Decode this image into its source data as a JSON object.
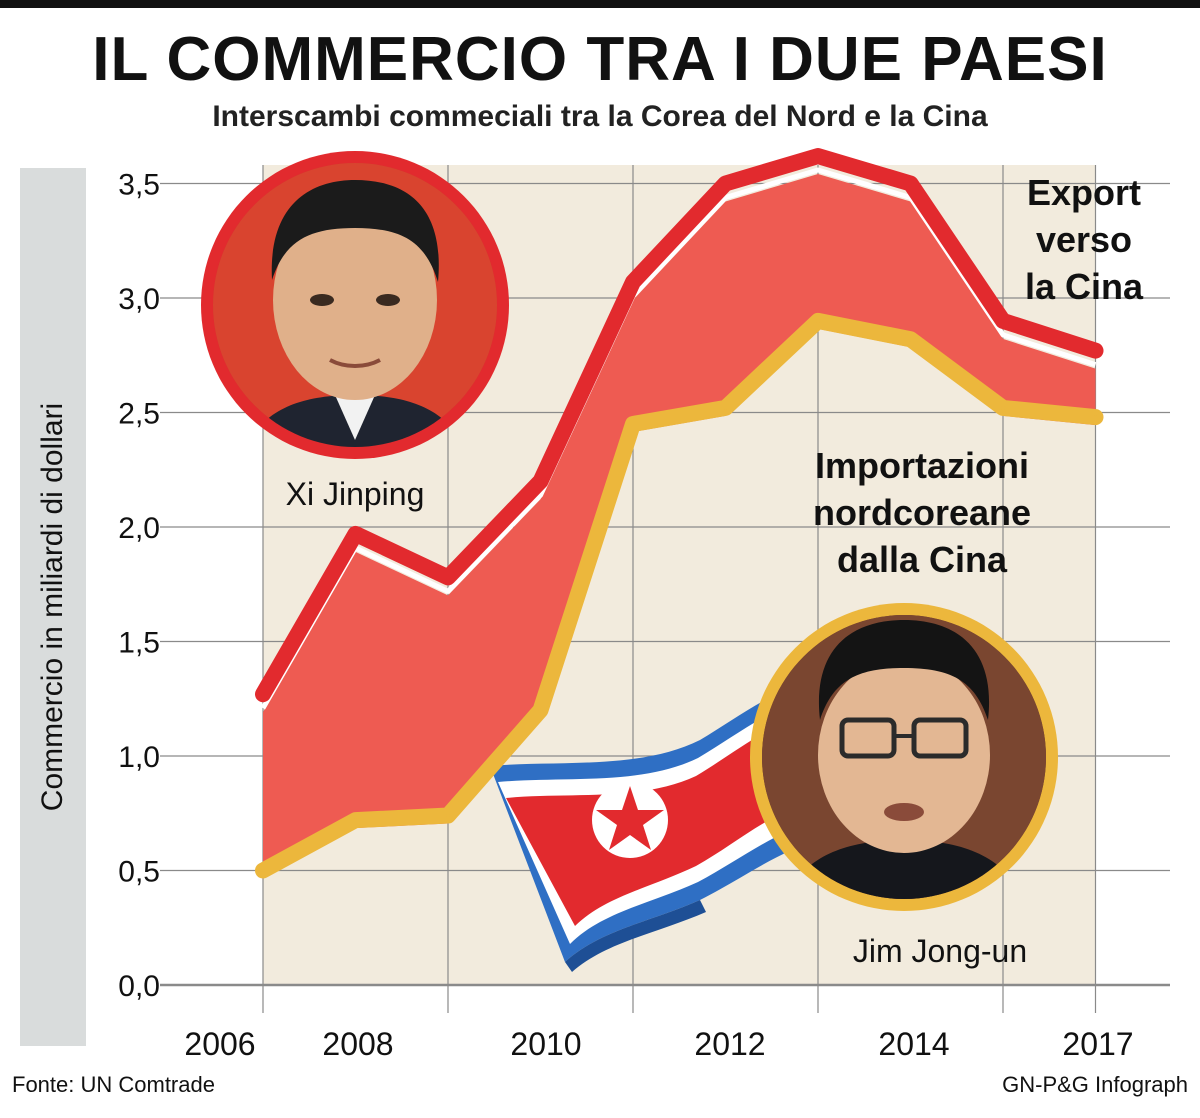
{
  "header": {
    "title": "IL COMMERCIO TRA I DUE PAESI",
    "subtitle": "Interscambi commeciali tra la Corea del Nord e la Cina"
  },
  "footer": {
    "source": "Fonte: UN Comtrade",
    "credit": "GN-P&G Infograph"
  },
  "colors": {
    "export_line": "#e22a2e",
    "export_fill": "#ee5b52",
    "import_line": "#ecb73c",
    "background_fill": "#f2ebdd",
    "grid": "#8a8a8a",
    "axis_band": "#d9dcdc",
    "xi_frame": "#e22a2e",
    "kim_frame": "#ecb73c"
  },
  "photos": {
    "xi": {
      "caption": "Xi Jinping",
      "icon": "portrait-photo"
    },
    "kim": {
      "caption": "Jim Jong-un",
      "icon": "portrait-photo"
    },
    "flag": {
      "icon": "north-korea-flag"
    }
  },
  "chart_data": {
    "type": "area",
    "title": "IL COMMERCIO TRA I DUE PAESI",
    "subtitle": "Interscambi commeciali tra la Corea del Nord e la Cina",
    "ylabel": "Commercio in miliardi di dollari",
    "xlabel": "",
    "ylim": [
      0,
      3.5
    ],
    "yticks": [
      "0,0",
      "0,5",
      "1,0",
      "1,5",
      "2,0",
      "2,5",
      "3,0",
      "3,5"
    ],
    "xtick_labels": [
      "2006",
      "2008",
      "2010",
      "2012",
      "2014",
      "2017"
    ],
    "x": [
      2007,
      2008,
      2009,
      2010,
      2011,
      2012,
      2013,
      2014,
      2015,
      2016
    ],
    "series": [
      {
        "name": "Export verso la Cina",
        "label_lines": [
          "Export",
          "verso",
          "la Cina"
        ],
        "values": [
          1.27,
          1.97,
          1.78,
          2.2,
          3.07,
          3.5,
          3.62,
          3.5,
          2.9,
          2.77
        ]
      },
      {
        "name": "Importazioni nordcoreane dalla Cina",
        "label_lines": [
          "Importazioni",
          "nordcoreane",
          "dalla Cina"
        ],
        "values": [
          0.5,
          0.72,
          0.74,
          1.2,
          2.45,
          2.52,
          2.9,
          2.82,
          2.52,
          2.48
        ]
      }
    ],
    "grid": true
  }
}
